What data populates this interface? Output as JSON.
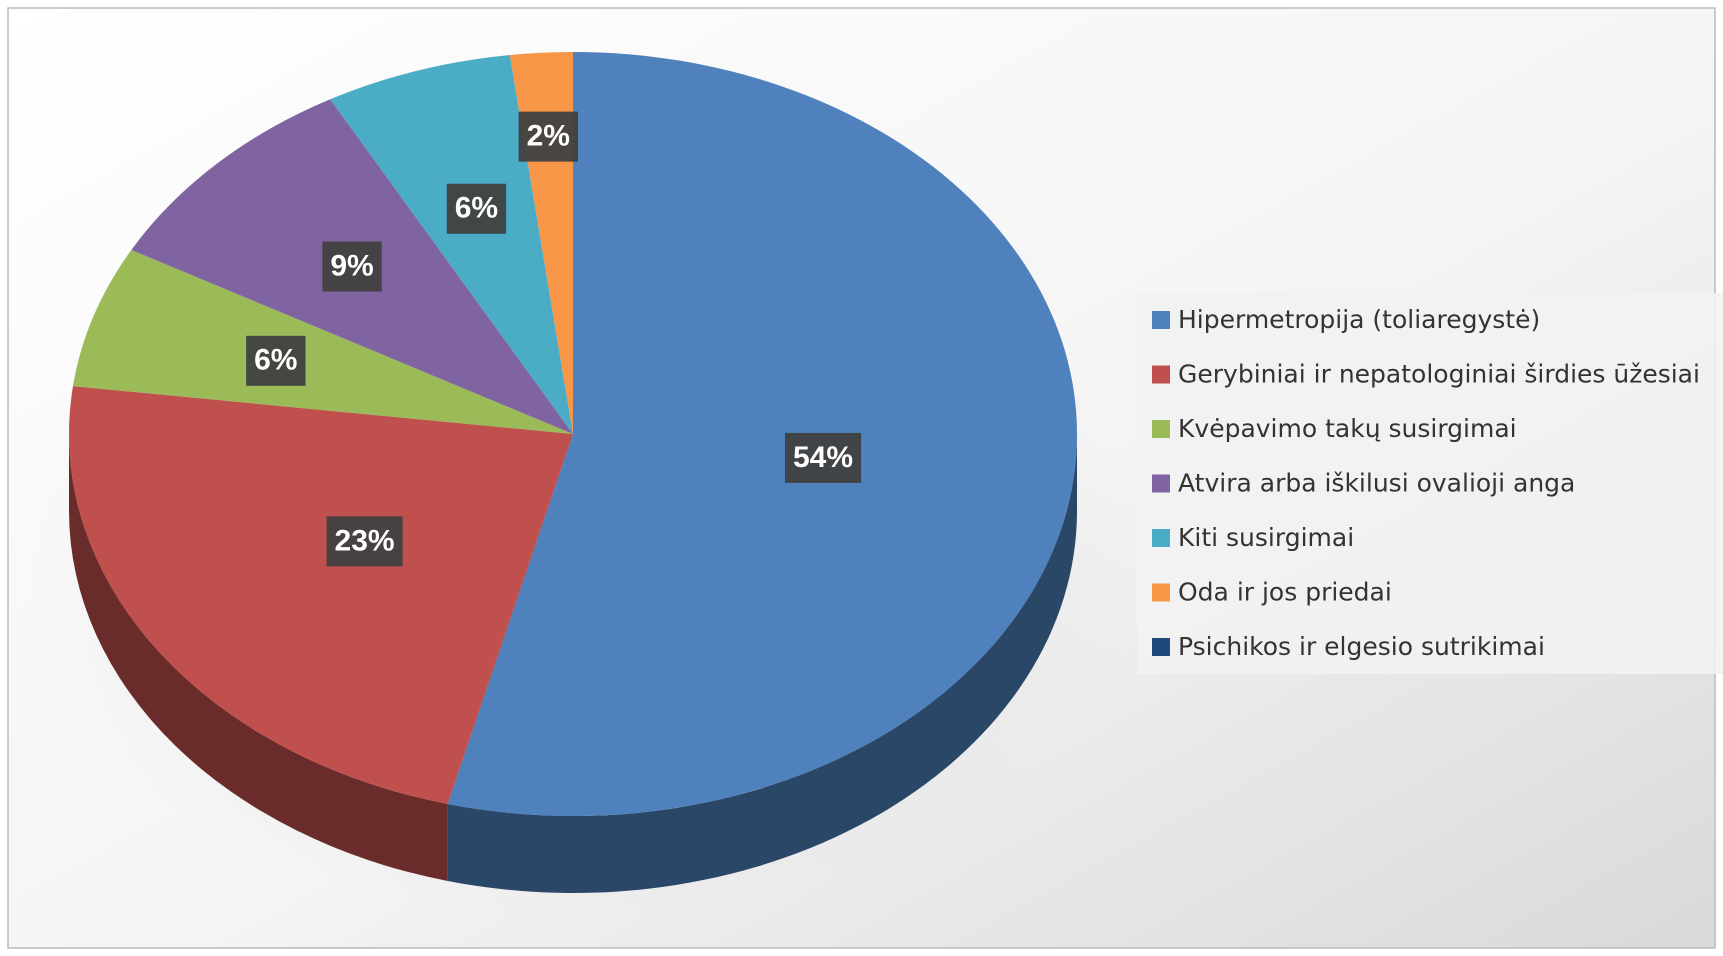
{
  "chart_data": {
    "type": "pie",
    "categories": [
      "Hipermetropija (toliaregystė)",
      "Gerybiniai ir nepatologiniai širdies ūžesiai",
      "Kvėpavimo takų susirgimai",
      "Atvira arba iškilusi ovalioji anga",
      "Kiti susirgimai",
      "Oda ir jos priedai",
      "Psichikos ir elgesio sutrikimai"
    ],
    "values": [
      54,
      23,
      6,
      9,
      6,
      2,
      0
    ],
    "value_labels": [
      "54%",
      "23%",
      "6%",
      "9%",
      "6%",
      "2%",
      null
    ],
    "colors": [
      "#4f81bd",
      "#c0504d",
      "#9bbb59",
      "#8064a2",
      "#4bacc6",
      "#f79646",
      "#1f497d"
    ],
    "legend": "right"
  }
}
